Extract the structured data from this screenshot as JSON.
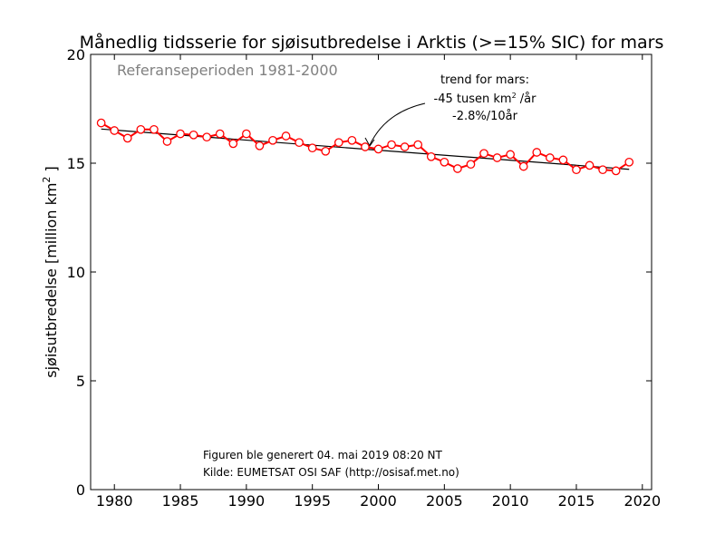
{
  "chart_data": {
    "type": "line",
    "title": "Månedlig tidsserie for sjøisutbredelse i Arktis (>=15% SIC) for mars",
    "ylabel": "sjøisutbredelse [million km",
    "ylabel_sup": "2",
    "ylabel_end": " ]",
    "xlim": [
      1978.2,
      2020.7
    ],
    "ylim": [
      0,
      20
    ],
    "x_ticks": [
      1980,
      1985,
      1990,
      1995,
      2000,
      2005,
      2010,
      2015,
      2020
    ],
    "y_ticks": [
      0,
      5,
      10,
      15,
      20
    ],
    "grid": false,
    "reference_note": "Referanseperioden 1981-2000",
    "annotation": {
      "line1": "trend for mars:",
      "line2_pre": "-45 tusen km",
      "line2_sup": "2",
      "line2_post": " /år",
      "line3": "-2.8%/10år",
      "arrow_target_year": 1999.2
    },
    "footer": {
      "line1": "Figuren ble generert 04. mai 2019 08:20 NT",
      "line2": "Kilde: EUMETSAT OSI SAF (http://osisaf.met.no)"
    },
    "series": [
      {
        "color": "#ff0000",
        "marker": "open-circle",
        "x": [
          1979,
          1980,
          1981,
          1982,
          1983,
          1984,
          1985,
          1986,
          1987,
          1988,
          1989,
          1990,
          1991,
          1992,
          1993,
          1994,
          1995,
          1996,
          1997,
          1998,
          1999,
          2000,
          2001,
          2002,
          2003,
          2004,
          2005,
          2006,
          2007,
          2008,
          2009,
          2010,
          2011,
          2012,
          2013,
          2014,
          2015,
          2016,
          2017,
          2018,
          2019
        ],
        "y": [
          16.85,
          16.5,
          16.15,
          16.55,
          16.55,
          16.0,
          16.35,
          16.3,
          16.2,
          16.35,
          15.9,
          16.35,
          15.8,
          16.05,
          16.25,
          15.95,
          15.7,
          15.55,
          15.95,
          16.05,
          15.75,
          15.65,
          15.85,
          15.75,
          15.85,
          15.3,
          15.05,
          14.75,
          14.95,
          15.45,
          15.25,
          15.4,
          14.85,
          15.5,
          15.25,
          15.15,
          14.7,
          14.9,
          14.7,
          14.65,
          15.05
        ]
      }
    ],
    "trend": {
      "color": "#000000",
      "x": [
        1979,
        2019
      ],
      "y": [
        16.57,
        14.72
      ]
    }
  }
}
